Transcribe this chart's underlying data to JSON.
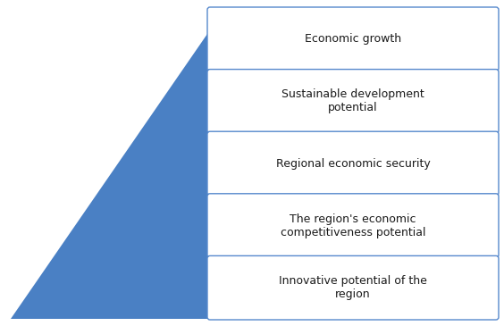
{
  "labels": [
    "Economic growth",
    "Sustainable development\npotential",
    "Regional economic security",
    "The region's economic\ncompetitiveness potential",
    "Innovative potential of the\nregion"
  ],
  "pyramid_color_dark": "#4A80C4",
  "pyramid_color_light": "#C5D8EF",
  "box_face_color": "#FFFFFF",
  "box_edge_color": "#5588CC",
  "text_color": "#1a1a1a",
  "background_color": "#FFFFFF",
  "n_levels": 5,
  "fig_width": 5.64,
  "fig_height": 3.65,
  "font_size": 9.0
}
